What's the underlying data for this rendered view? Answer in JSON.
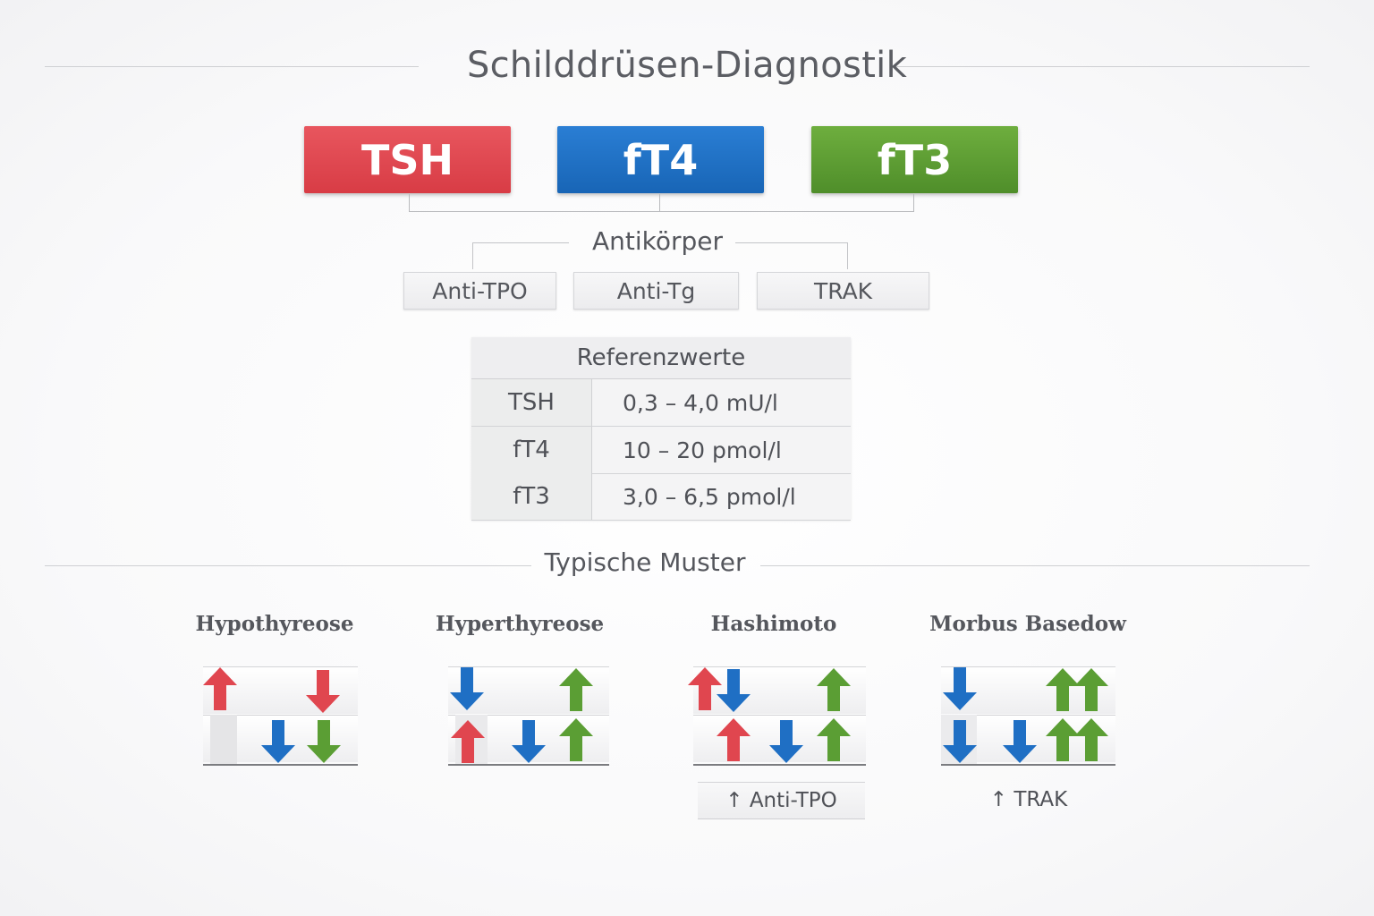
{
  "title": "Schilddrüsen-Diagnostik",
  "markers": [
    {
      "label": "TSH",
      "color": "#dc434b"
    },
    {
      "label": "fT4",
      "color": "#1f6fc4"
    },
    {
      "label": "fT3",
      "color": "#5d9d33"
    }
  ],
  "antibodies": {
    "heading": "Antikörper",
    "items": [
      "Anti-TPO",
      "Anti-Tg",
      "TRAK"
    ]
  },
  "reference": {
    "heading": "Referenzwerte",
    "rows": [
      {
        "param": "TSH",
        "value": "0,3 – 4,0 mU/l"
      },
      {
        "param": "fT4",
        "value": "10 – 20 pmol/l"
      },
      {
        "param": "fT3",
        "value": "3,0 – 6,5 pmol/l"
      }
    ]
  },
  "patterns": {
    "heading": "Typische Muster",
    "items": [
      {
        "name": "Hypothyreose",
        "note": ""
      },
      {
        "name": "Hyperthyreose",
        "note": ""
      },
      {
        "name": "Hashimoto",
        "note": "↑ Anti-TPO"
      },
      {
        "name": "Morbus Basedow",
        "note": "↑ TRAK"
      }
    ]
  },
  "arrow_colors": {
    "red": "#e0464f",
    "blue": "#1f6fc4",
    "green": "#5b9e34"
  }
}
